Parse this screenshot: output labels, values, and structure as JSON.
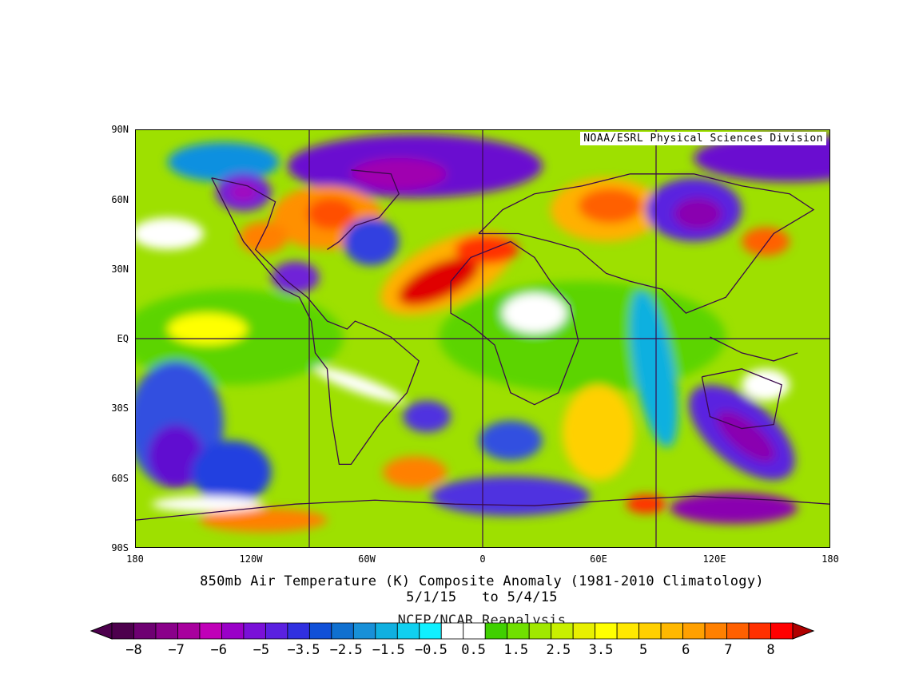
{
  "map": {
    "credit": "NOAA/ESRL Physical Sciences Division",
    "lat_labels": [
      "90N",
      "60N",
      "30N",
      "EQ",
      "30S",
      "60S",
      "90S"
    ],
    "lon_labels": [
      "180",
      "120W",
      "60W",
      "0",
      "60E",
      "120E",
      "180"
    ],
    "title_line1": "850mb Air Temperature (K) Composite Anomaly (1981-2010 Climatology)",
    "title_line2": "5/1/15   to 5/4/15",
    "title_line3": "NCEP/NCAR Reanalysis"
  },
  "colorbar": {
    "labels": [
      "-8",
      "-7",
      "-6",
      "-5",
      "-3.5",
      "-2.5",
      "-1.5",
      "-0.5",
      "0.5",
      "1.5",
      "2.5",
      "3.5",
      "5",
      "6",
      "7",
      "8"
    ],
    "colors": [
      "#4d004d",
      "#6e0072",
      "#8a008a",
      "#a8009e",
      "#c000b8",
      "#9a00c8",
      "#7a10d8",
      "#5a20e0",
      "#3030e0",
      "#1050d8",
      "#1070d0",
      "#1890d8",
      "#10b0e0",
      "#10d0f0",
      "#10f0ff",
      "#ffffff",
      "#ffffff",
      "#40d000",
      "#70e000",
      "#a0e800",
      "#c8f000",
      "#e8f000",
      "#ffff00",
      "#ffe800",
      "#ffd000",
      "#ffb800",
      "#ffa000",
      "#ff8000",
      "#ff6000",
      "#ff3000",
      "#ff0000"
    ],
    "end_colors": [
      "#4d004d",
      "#b00000"
    ]
  }
}
